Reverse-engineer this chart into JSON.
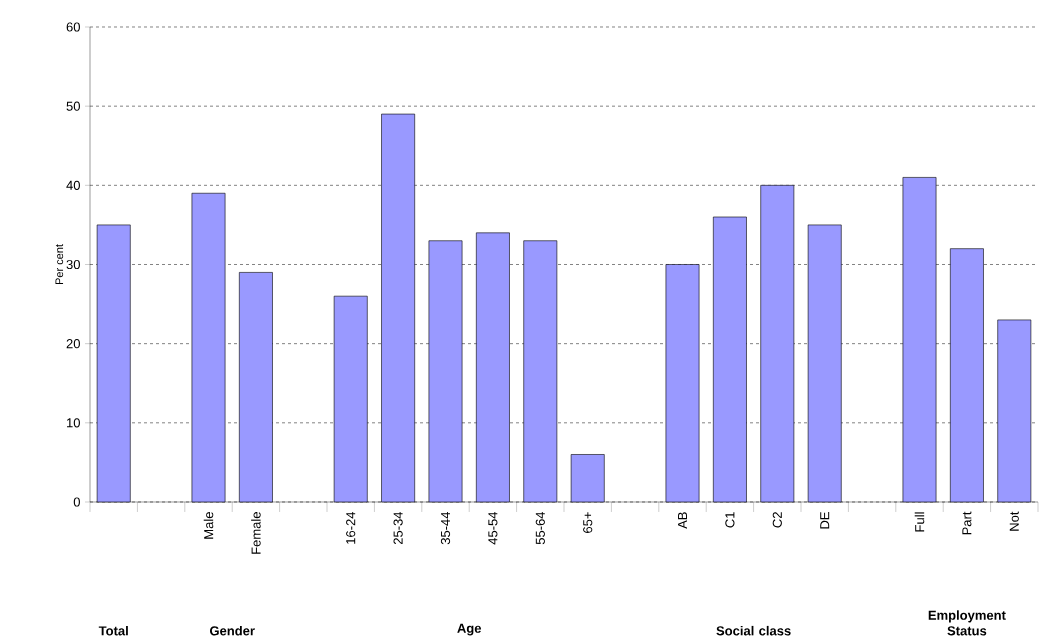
{
  "chart_data": {
    "type": "bar",
    "ylabel": "Per cent",
    "categories": [
      null,
      null,
      "Male",
      "Female",
      null,
      "16-24",
      "25-34",
      "35-44",
      "45-54",
      "55-64",
      "65+",
      null,
      "AB",
      "C1",
      "C2",
      "DE",
      null,
      "Full",
      "Part",
      "Not"
    ],
    "values": [
      35,
      null,
      39,
      29,
      null,
      26,
      49,
      33,
      34,
      33,
      6,
      null,
      30,
      36,
      40,
      35,
      null,
      41,
      32,
      23
    ],
    "color": "#9999ff",
    "ylim": [
      0,
      60
    ],
    "yticks": [
      0,
      10,
      20,
      30,
      40,
      50,
      60
    ],
    "grid": "y",
    "annotations": [
      "Total",
      "Gender",
      "Age",
      "Social class",
      "Employment Status"
    ]
  }
}
